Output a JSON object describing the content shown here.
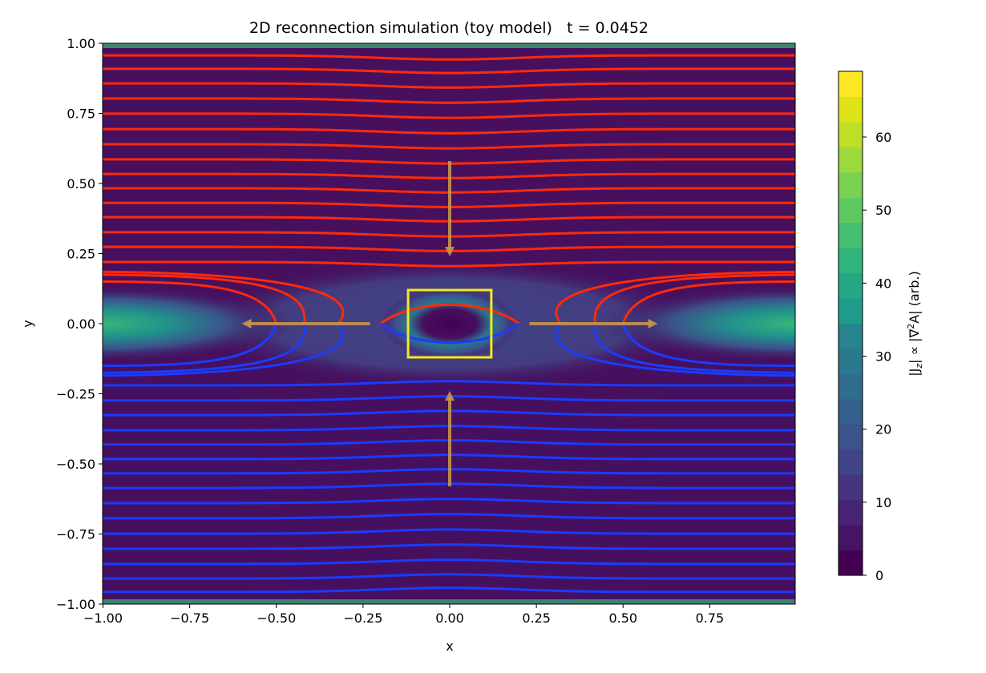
{
  "chart_data": {
    "type": "heatmap",
    "title": "2D reconnection simulation (toy model)   t = 0.0452",
    "xlabel": "x",
    "ylabel": "y",
    "xlim": [
      -1.0,
      1.0
    ],
    "ylim": [
      -1.0,
      1.0
    ],
    "xticks": [
      "−1.00",
      "−0.75",
      "−0.50",
      "−0.25",
      "0.00",
      "0.25",
      "0.50",
      "0.75"
    ],
    "xtick_values": [
      -1,
      -0.75,
      -0.5,
      -0.25,
      0,
      0.25,
      0.5,
      0.75
    ],
    "yticks": [
      "1.00",
      "0.75",
      "0.50",
      "0.25",
      "0.00",
      "−0.25",
      "−0.50",
      "−0.75",
      "−1.00"
    ],
    "ytick_values": [
      1,
      0.75,
      0.5,
      0.25,
      0,
      -0.25,
      -0.5,
      -0.75,
      -1
    ],
    "colorbar": {
      "label": "|J_z| ∝ |∇²A| (arb.)",
      "label_parts": [
        "|J",
        "z",
        "| ∝ |∇",
        "2",
        "A| (arb.)"
      ],
      "range": [
        0,
        69
      ],
      "ticks": [
        "0",
        "10",
        "20",
        "30",
        "40",
        "50",
        "60"
      ],
      "tick_values": [
        0,
        10,
        20,
        30,
        40,
        50,
        60
      ],
      "colormap": "viridis"
    },
    "fieldline_levels_upper": [
      0.957,
      0.909,
      0.857,
      0.803,
      0.749,
      0.694,
      0.64,
      0.586,
      0.534,
      0.483,
      0.431,
      0.38,
      0.326,
      0.274,
      0.22
    ],
    "fieldline_levels_lower": [
      -0.957,
      -0.909,
      -0.857,
      -0.803,
      -0.749,
      -0.694,
      -0.64,
      -0.586,
      -0.534,
      -0.483,
      -0.431,
      -0.38,
      -0.326,
      -0.274,
      -0.22
    ],
    "diffusion_region_box": {
      "x": [
        -0.12,
        0.12
      ],
      "y": [
        -0.12,
        0.12
      ]
    },
    "inflow_arrows": [
      {
        "from": [
          0,
          0.58
        ],
        "to": [
          0,
          0.24
        ]
      },
      {
        "from": [
          0,
          -0.58
        ],
        "to": [
          0,
          -0.24
        ]
      }
    ],
    "outflow_arrows": [
      {
        "from": [
          -0.23,
          0
        ],
        "to": [
          -0.6,
          0
        ]
      },
      {
        "from": [
          0.23,
          0
        ],
        "to": [
          0.6,
          0
        ]
      }
    ],
    "colors": {
      "upper_lines": "#ff2a0a",
      "lower_lines": "#1a3cff",
      "box": "#f5e91a",
      "arrows": "#c8964a",
      "background": "#46105f"
    }
  }
}
